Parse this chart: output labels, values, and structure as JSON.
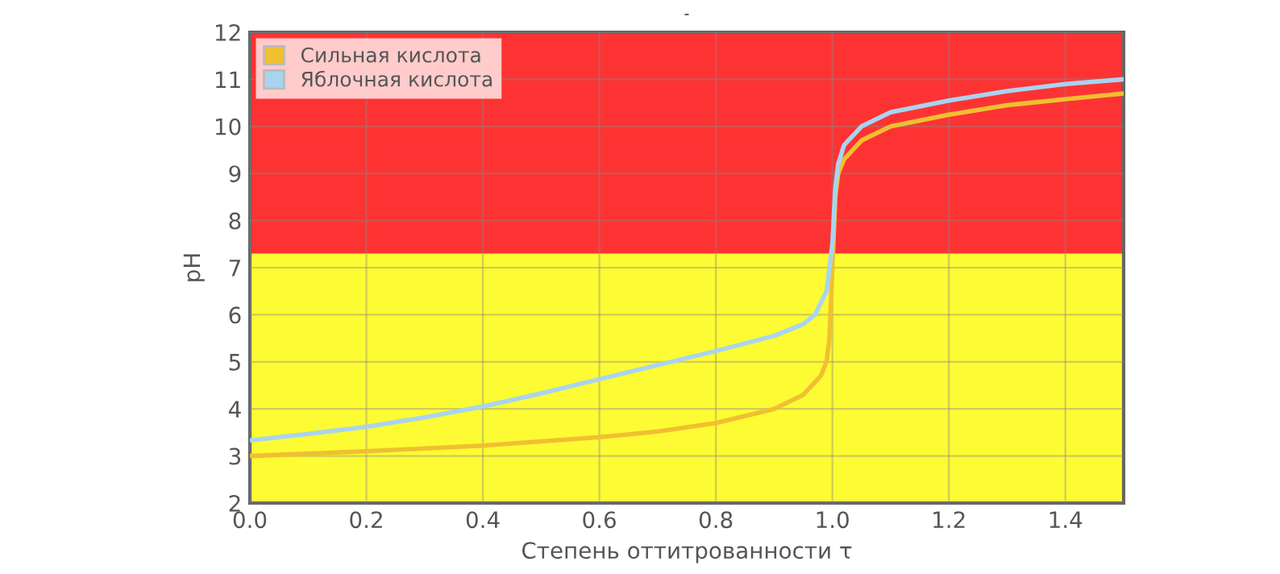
{
  "chart_data": {
    "type": "line",
    "title": "-",
    "xlabel": "Степень оттитрованности τ",
    "ylabel": "pH",
    "xlim": [
      0,
      1.5
    ],
    "xticks": [
      {
        "value": 0,
        "label": "0.0"
      },
      0.2,
      0.4,
      0.6,
      0.8,
      {
        "value": 1,
        "label": "1.0"
      },
      1.2,
      1.4
    ],
    "ylim": [
      2,
      12
    ],
    "yticks": [
      2,
      3,
      4,
      5,
      6,
      7,
      8,
      9,
      10,
      11,
      12
    ],
    "grid": true,
    "legend": "top left",
    "marker": "none",
    "line_style": "solid",
    "bands": [
      {
        "axis": "y",
        "from": 2,
        "to": 7.3,
        "color": "#fdfb33"
      },
      {
        "axis": "y",
        "from": 7.3,
        "to": 12,
        "color": "#fd3333"
      }
    ],
    "series": [
      {
        "name": "Сильная кислота",
        "color": "#f0c030",
        "x": [
          0,
          0.2,
          0.4,
          0.6,
          0.7,
          0.8,
          0.9,
          0.95,
          0.98,
          0.99,
          0.995,
          1.0,
          1.005,
          1.01,
          1.02,
          1.05,
          1.1,
          1.2,
          1.3,
          1.4,
          1.5
        ],
        "values": [
          3.0,
          3.1,
          3.22,
          3.4,
          3.52,
          3.7,
          4.0,
          4.3,
          4.7,
          5.0,
          5.5,
          7.0,
          8.5,
          9.0,
          9.3,
          9.7,
          10.0,
          10.25,
          10.45,
          10.58,
          10.7
        ]
      },
      {
        "name": "Яблочная кислота",
        "color": "#a8d4f0",
        "x": [
          0,
          0.1,
          0.2,
          0.3,
          0.4,
          0.5,
          0.6,
          0.7,
          0.8,
          0.9,
          0.95,
          0.97,
          0.99,
          1.0,
          1.005,
          1.01,
          1.02,
          1.05,
          1.1,
          1.2,
          1.3,
          1.4,
          1.5
        ],
        "values": [
          3.33,
          3.47,
          3.62,
          3.82,
          4.05,
          4.33,
          4.63,
          4.93,
          5.23,
          5.55,
          5.8,
          6.0,
          6.5,
          7.5,
          8.7,
          9.2,
          9.6,
          10.0,
          10.3,
          10.55,
          10.75,
          10.9,
          11.0
        ]
      }
    ]
  }
}
